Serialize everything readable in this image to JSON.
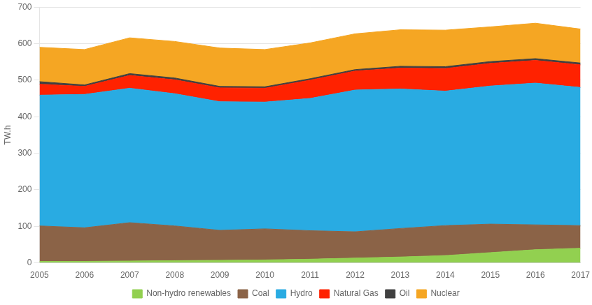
{
  "chart_data": {
    "type": "area",
    "stacked": true,
    "x": [
      2005,
      2006,
      2007,
      2008,
      2009,
      2010,
      2011,
      2012,
      2013,
      2014,
      2015,
      2016,
      2017
    ],
    "series": [
      {
        "name": "Non-hydro renewables",
        "color": "#92d050",
        "values": [
          4,
          4,
          5,
          6,
          7,
          8,
          10,
          13,
          16,
          20,
          28,
          36,
          40
        ]
      },
      {
        "name": "Coal",
        "color": "#8B6347",
        "values": [
          97,
          92,
          105,
          95,
          82,
          85,
          78,
          72,
          78,
          82,
          78,
          68,
          62
        ]
      },
      {
        "name": "Hydro",
        "color": "#29ABE2",
        "values": [
          358,
          365,
          368,
          362,
          352,
          347,
          362,
          388,
          382,
          368,
          378,
          388,
          378
        ]
      },
      {
        "name": "Natural Gas",
        "color": "#FF2200",
        "values": [
          30,
          22,
          35,
          38,
          38,
          38,
          50,
          52,
          57,
          62,
          62,
          62,
          62
        ]
      },
      {
        "name": "Oil",
        "color": "#404040",
        "values": [
          7,
          4,
          5,
          5,
          4,
          4,
          4,
          4,
          5,
          5,
          5,
          5,
          5
        ]
      },
      {
        "name": "Nuclear",
        "color": "#F5A623",
        "values": [
          94,
          97,
          98,
          100,
          105,
          102,
          98,
          98,
          100,
          100,
          95,
          97,
          93
        ]
      }
    ],
    "ylabel": "TW.h",
    "xlim": [
      2005,
      2017
    ],
    "xticks": [
      2005,
      2006,
      2007,
      2008,
      2009,
      2010,
      2011,
      2012,
      2013,
      2014,
      2015,
      2016,
      2017
    ],
    "ylim": [
      0,
      700
    ],
    "yticks": [
      0,
      100,
      200,
      300,
      400,
      500,
      600,
      700
    ],
    "grid": "y",
    "legend": "bottom"
  }
}
